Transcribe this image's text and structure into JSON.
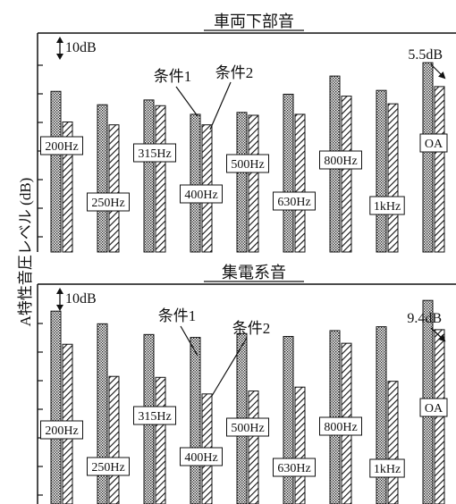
{
  "y_axis_label": "A特性音圧レベル (dB)",
  "chart_data": [
    {
      "type": "bar",
      "title": "車両下部音",
      "ylabel": "A特性音圧レベル (dB)",
      "scale_label": "10dB",
      "categories": [
        "200Hz",
        "250Hz",
        "315Hz",
        "400Hz",
        "500Hz",
        "630Hz",
        "800Hz",
        "1kHz",
        "OA"
      ],
      "series": [
        {
          "name": "条件1",
          "values": [
            16.8,
            15.4,
            15.9,
            14.4,
            14.6,
            16.5,
            18.4,
            16.9,
            19.8
          ]
        },
        {
          "name": "条件2",
          "values": [
            13.6,
            13.3,
            15.3,
            13.3,
            14.3,
            14.4,
            16.3,
            15.5,
            17.3
          ]
        }
      ],
      "ylim": [
        0,
        23
      ],
      "annotation": "5.5dB",
      "grid": false
    },
    {
      "type": "bar",
      "title": "集電系音",
      "ylabel": "A特性音圧レベル (dB)",
      "scale_label": "10dB",
      "categories": [
        "200Hz",
        "250Hz",
        "315Hz",
        "400Hz",
        "500Hz",
        "630Hz",
        "800Hz",
        "1kHz",
        "OA"
      ],
      "series": [
        {
          "name": "条件1",
          "values": [
            19.8,
            18.5,
            17.4,
            17.1,
            17.5,
            17.2,
            17.8,
            18.2,
            20.9
          ]
        },
        {
          "name": "条件2",
          "values": [
            16.4,
            13.1,
            13.0,
            11.3,
            11.6,
            12.0,
            16.5,
            12.6,
            17.9
          ]
        }
      ],
      "ylim": [
        0,
        22.5
      ],
      "annotation": "9.4dB",
      "grid": false
    }
  ]
}
